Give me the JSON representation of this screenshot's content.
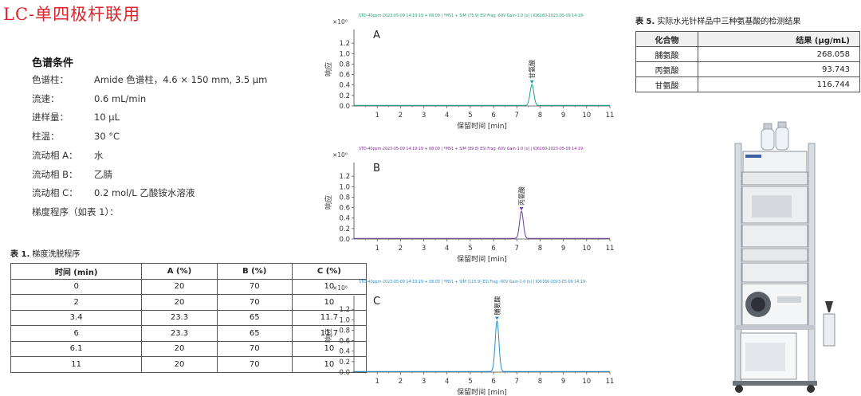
{
  "title": "LC-单四极杆联用",
  "conditions": {
    "heading": "色谱条件",
    "rows": [
      {
        "label": "色谱柱：",
        "value": "Amide 色谱柱，4.6 × 150 mm, 3.5 μm"
      },
      {
        "label": "流速：",
        "value": "0.6 mL/min"
      },
      {
        "label": "进样量：",
        "value": "10 μL"
      },
      {
        "label": "柱温：",
        "value": "30 °C"
      },
      {
        "label": "流动相 A：",
        "value": "水"
      },
      {
        "label": "流动相 B：",
        "value": "乙腈"
      },
      {
        "label": "流动相 C：",
        "value": "0.2 mol/L 乙酸铵水溶液"
      },
      {
        "label": "梯度程序（如表 1）：",
        "value": ""
      }
    ]
  },
  "gradient_table": {
    "caption_prefix": "表 1.",
    "caption_text": " 梯度洗脱程序",
    "headers": [
      "时间 (min)",
      "A (%)",
      "B (%)",
      "C (%)"
    ],
    "rows": [
      [
        "0",
        "20",
        "70",
        "10"
      ],
      [
        "2",
        "20",
        "70",
        "10"
      ],
      [
        "3.4",
        "23.3",
        "65",
        "11.7"
      ],
      [
        "6",
        "23.3",
        "65",
        "11.7"
      ],
      [
        "6.1",
        "20",
        "70",
        "10"
      ],
      [
        "11",
        "20",
        "70",
        "10"
      ]
    ]
  },
  "results_table": {
    "caption_prefix": "表 5.",
    "caption_text": " 实际水光针样品中三种氨基酸的检测结果",
    "headers": [
      "化合物",
      "结果 (μg/mL)"
    ],
    "rows": [
      [
        "脯氨酸",
        "268.058"
      ],
      [
        "丙氨酸",
        "93.743"
      ],
      [
        "甘氨酸",
        "116.744"
      ]
    ]
  },
  "colors": {
    "title_red": "#d9262c",
    "green_trace": "#1aa38a",
    "purple_trace": "#6a3d9a",
    "blue_trace": "#2a8ec4",
    "header_A": "#2a9c7a",
    "header_B": "#7b2d8e",
    "header_C": "#2a8ec4"
  },
  "instrument": {
    "icon": "lc-ms-instrument-icon"
  },
  "chart_data": [
    {
      "type": "line",
      "panel": "A",
      "header": "STD-40ppm-2023-05-09 14:19:19 + 08:00 | *MS1 + SIM (75.9) ESI Frag -60V Gain-1.0 [s] | IQ6160-2023-05-09 14:19-",
      "y_multiplier": "×10⁶",
      "ylabel": "响应",
      "xlabel": "保留时间 [min]",
      "xlim": [
        0,
        11
      ],
      "ylim": [
        0,
        1.4
      ],
      "x_ticks": [
        1,
        2,
        3,
        4,
        5,
        6,
        7,
        8,
        9,
        10,
        11
      ],
      "y_ticks": [
        0.0,
        0.2,
        0.4,
        0.6,
        0.8,
        1.0,
        1.2
      ],
      "peak": {
        "center": 7.65,
        "height": 0.4,
        "width": 0.08,
        "label": "甘氨酸"
      }
    },
    {
      "type": "line",
      "panel": "B",
      "header": "STD-40ppm-2023-05-09 14:19:19 + 08:00 | *MS1 + SIM (89.8) ESI Frag -60V Gain-1.0 [s] | IQ6160-2023-05-09 14:19-",
      "y_multiplier": "×10⁶",
      "ylabel": "响应",
      "xlabel": "保留时间 [min]",
      "xlim": [
        0,
        11
      ],
      "ylim": [
        0,
        1.4
      ],
      "x_ticks": [
        1,
        2,
        3,
        4,
        5,
        6,
        7,
        8,
        9,
        10,
        11
      ],
      "y_ticks": [
        0.0,
        0.2,
        0.4,
        0.6,
        0.8,
        1.0,
        1.2
      ],
      "peak": {
        "center": 7.2,
        "height": 0.52,
        "width": 0.08,
        "label": "丙氨酸"
      }
    },
    {
      "type": "line",
      "panel": "C",
      "header": "STD-40ppm-2023-05-09 14:19:19 + 08:00 | *MS1 + SIM (115.9) ESI Frag -60V Gain-1.0 [s] | IQ6160-2023-05-09 14:19-",
      "y_multiplier": "×10⁶",
      "ylabel": "响应",
      "xlabel": "保留时间 [min]",
      "xlim": [
        0,
        11
      ],
      "ylim": [
        0,
        1.4
      ],
      "x_ticks": [
        1,
        2,
        3,
        4,
        5,
        6,
        7,
        8,
        9,
        10,
        11
      ],
      "y_ticks": [
        0.0,
        0.2,
        0.4,
        0.6,
        0.8,
        1.0,
        1.2
      ],
      "peak": {
        "center": 6.15,
        "height": 0.97,
        "width": 0.08,
        "label": "脯氨酸"
      }
    }
  ]
}
